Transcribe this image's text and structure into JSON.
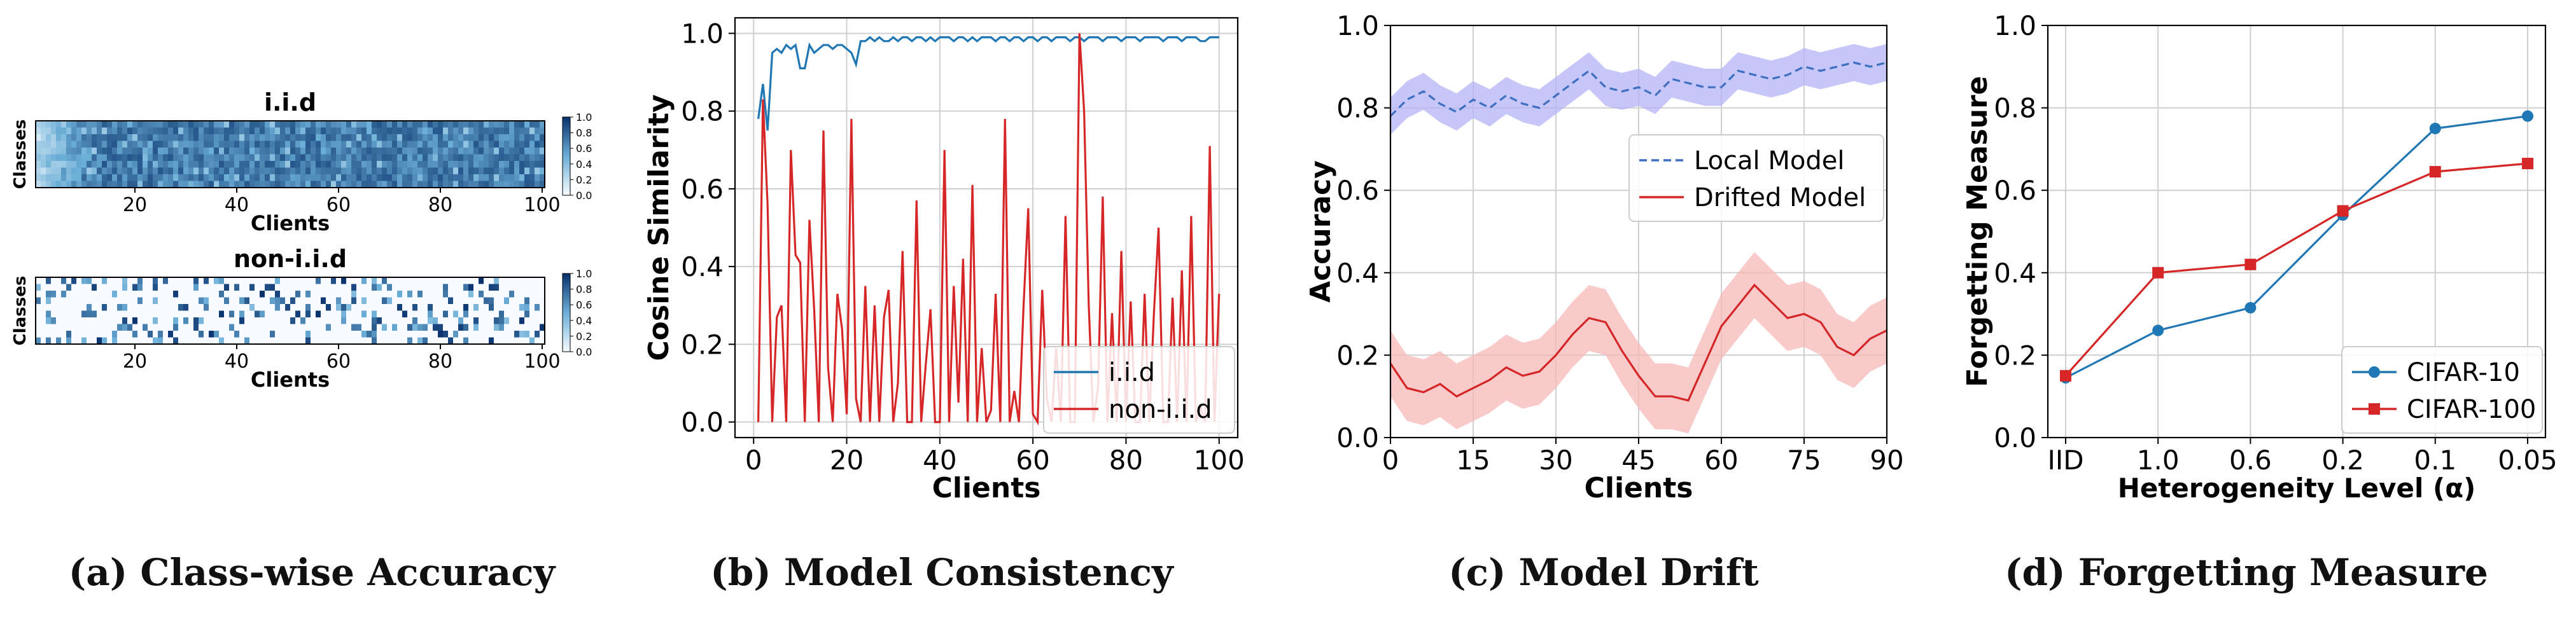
{
  "captions": {
    "a": "(a) Class-wise Accuracy",
    "b": "(b) Model Consistency",
    "c": "(c) Model Drift",
    "d": "(d) Forgetting Measure"
  },
  "colors": {
    "blue": "#1f77b4",
    "red": "#d62728",
    "dash_blue": "#3f6fc0",
    "band_blue": "#b3b3f5",
    "band_red": "#f7b8b8",
    "heat_low": "#f7fbff",
    "heat_high": "#08306b"
  },
  "chart_data": [
    {
      "type": "heatmap",
      "panel": "a-top",
      "title": "i.i.d",
      "xlabel": "Clients",
      "ylabel": "Classes",
      "xticks": [
        20,
        40,
        60,
        80,
        100
      ],
      "colorbar_ticks": [
        "1.0",
        "0.8",
        "0.6",
        "0.4",
        "0.2",
        "0.0"
      ],
      "rows": 10,
      "columns": 100,
      "value_range": [
        0,
        1
      ],
      "pattern": "dense, mostly 0.6-0.9, lighter near first clients"
    },
    {
      "type": "heatmap",
      "panel": "a-bottom",
      "title": "non-i.i.d",
      "xlabel": "Clients",
      "ylabel": "Classes",
      "xticks": [
        20,
        40,
        60,
        80,
        100
      ],
      "colorbar_ticks": [
        "1.0",
        "0.8",
        "0.6",
        "0.4",
        "0.2",
        "0.0"
      ],
      "rows": 10,
      "columns": 100,
      "value_range": [
        0,
        1
      ],
      "pattern": "sparse, most cells 0, scattered high cells"
    },
    {
      "type": "line",
      "panel": "b",
      "xlabel": "Clients",
      "ylabel": "Cosine Similarity",
      "xlim": [
        -4,
        104
      ],
      "ylim": [
        -0.04,
        1.04
      ],
      "xticks": [
        "0",
        "20",
        "40",
        "60",
        "80",
        "100"
      ],
      "yticks": [
        "0.0",
        "0.2",
        "0.4",
        "0.6",
        "0.8",
        "1.0"
      ],
      "grid": true,
      "legend": "bottom-right",
      "series": [
        {
          "name": "i.i.d",
          "color": "#1f77b4",
          "x": [
            1,
            2,
            3,
            4,
            5,
            6,
            7,
            8,
            9,
            10,
            11,
            12,
            13,
            14,
            15,
            16,
            17,
            18,
            19,
            20,
            21,
            22,
            23,
            24,
            25,
            26,
            27,
            28,
            29,
            30,
            31,
            32,
            33,
            34,
            35,
            36,
            37,
            38,
            39,
            40,
            41,
            42,
            43,
            44,
            45,
            46,
            47,
            48,
            49,
            50,
            51,
            52,
            53,
            54,
            55,
            56,
            57,
            58,
            59,
            60,
            61,
            62,
            63,
            64,
            65,
            66,
            67,
            68,
            69,
            70,
            71,
            72,
            73,
            74,
            75,
            76,
            77,
            78,
            79,
            80,
            81,
            82,
            83,
            84,
            85,
            86,
            87,
            88,
            89,
            90,
            91,
            92,
            93,
            94,
            95,
            96,
            97,
            98,
            99,
            100
          ],
          "y": [
            0.78,
            0.87,
            0.75,
            0.95,
            0.96,
            0.95,
            0.97,
            0.96,
            0.97,
            0.91,
            0.91,
            0.97,
            0.95,
            0.96,
            0.97,
            0.97,
            0.96,
            0.97,
            0.97,
            0.96,
            0.95,
            0.92,
            0.98,
            0.98,
            0.99,
            0.98,
            0.99,
            0.98,
            0.98,
            0.99,
            0.98,
            0.99,
            0.99,
            0.98,
            0.99,
            0.99,
            0.98,
            0.99,
            0.98,
            0.99,
            0.99,
            0.99,
            0.98,
            0.99,
            0.99,
            0.98,
            0.99,
            0.98,
            0.99,
            0.99,
            0.99,
            0.98,
            0.99,
            0.99,
            0.98,
            0.99,
            0.99,
            0.98,
            0.99,
            0.99,
            0.98,
            0.99,
            0.99,
            0.98,
            0.99,
            0.99,
            0.99,
            0.98,
            0.99,
            0.99,
            0.98,
            0.99,
            0.99,
            0.99,
            0.98,
            0.99,
            0.99,
            0.99,
            0.98,
            0.99,
            0.99,
            0.99,
            0.98,
            0.99,
            0.99,
            0.99,
            0.99,
            0.98,
            0.99,
            0.99,
            0.99,
            0.98,
            0.99,
            0.99,
            0.99,
            0.98,
            0.98,
            0.99,
            0.99,
            0.99
          ]
        },
        {
          "name": "non-i.i.d",
          "color": "#d62728",
          "x": [
            1,
            2,
            3,
            4,
            5,
            6,
            7,
            8,
            9,
            10,
            11,
            12,
            13,
            14,
            15,
            16,
            17,
            18,
            19,
            20,
            21,
            22,
            23,
            24,
            25,
            26,
            27,
            28,
            29,
            30,
            31,
            32,
            33,
            34,
            35,
            36,
            37,
            38,
            39,
            40,
            41,
            42,
            43,
            44,
            45,
            46,
            47,
            48,
            49,
            50,
            51,
            52,
            53,
            54,
            55,
            56,
            57,
            58,
            59,
            60,
            61,
            62,
            63,
            64,
            65,
            66,
            67,
            68,
            69,
            70,
            71,
            72,
            73,
            74,
            75,
            76,
            77,
            78,
            79,
            80,
            81,
            82,
            83,
            84,
            85,
            86,
            87,
            88,
            89,
            90,
            91,
            92,
            93,
            94,
            95,
            96,
            97,
            98,
            99,
            100
          ],
          "y": [
            0.0,
            0.83,
            0.56,
            0.0,
            0.27,
            0.3,
            0.0,
            0.7,
            0.43,
            0.41,
            0.0,
            0.52,
            0.29,
            0.0,
            0.75,
            0.14,
            0.0,
            0.33,
            0.24,
            0.02,
            0.78,
            0.06,
            0.0,
            0.35,
            0.0,
            0.3,
            0.0,
            0.27,
            0.34,
            0.0,
            0.1,
            0.44,
            0.0,
            0.0,
            0.57,
            0.0,
            0.15,
            0.29,
            0.0,
            0.0,
            0.7,
            0.0,
            0.35,
            0.05,
            0.42,
            0.0,
            0.61,
            0.0,
            0.19,
            0.0,
            0.03,
            0.33,
            0.0,
            0.78,
            0.0,
            0.08,
            0.0,
            0.3,
            0.55,
            0.02,
            0.0,
            0.34,
            0.06,
            0.0,
            0.19,
            0.0,
            0.53,
            0.0,
            0.0,
            1.0,
            0.8,
            0.3,
            0.0,
            0.09,
            0.58,
            0.0,
            0.28,
            0.0,
            0.44,
            0.0,
            0.31,
            0.0,
            0.0,
            0.33,
            0.0,
            0.28,
            0.5,
            0.0,
            0.0,
            0.32,
            0.0,
            0.39,
            0.0,
            0.53,
            0.0,
            0.04,
            0.0,
            0.71,
            0.0,
            0.33
          ]
        }
      ]
    },
    {
      "type": "line",
      "panel": "c",
      "xlabel": "Clients",
      "ylabel": "Accuracy",
      "xlim": [
        0,
        90
      ],
      "ylim": [
        0,
        1
      ],
      "xticks": [
        "0",
        "15",
        "30",
        "45",
        "60",
        "75",
        "90"
      ],
      "yticks": [
        "0.0",
        "0.2",
        "0.4",
        "0.6",
        "0.8",
        "1.0"
      ],
      "grid": true,
      "legend": "upper-right",
      "x": [
        0,
        3,
        6,
        9,
        12,
        15,
        18,
        21,
        24,
        27,
        30,
        33,
        36,
        39,
        42,
        45,
        48,
        51,
        54,
        57,
        60,
        63,
        66,
        69,
        72,
        75,
        78,
        81,
        84,
        87,
        90
      ],
      "series": [
        {
          "name": "Local Model",
          "style": "dashed",
          "color": "#3f6fc0",
          "mean": [
            0.78,
            0.82,
            0.84,
            0.81,
            0.79,
            0.82,
            0.8,
            0.83,
            0.81,
            0.8,
            0.83,
            0.86,
            0.89,
            0.85,
            0.84,
            0.85,
            0.83,
            0.87,
            0.86,
            0.85,
            0.85,
            0.89,
            0.88,
            0.87,
            0.88,
            0.9,
            0.89,
            0.9,
            0.91,
            0.9,
            0.91
          ],
          "band": 0.045
        },
        {
          "name": "Drifted Model",
          "style": "solid",
          "color": "#d62728",
          "mean": [
            0.18,
            0.12,
            0.11,
            0.13,
            0.1,
            0.12,
            0.14,
            0.17,
            0.15,
            0.16,
            0.2,
            0.25,
            0.29,
            0.28,
            0.21,
            0.15,
            0.1,
            0.1,
            0.09,
            0.18,
            0.27,
            0.32,
            0.37,
            0.33,
            0.29,
            0.3,
            0.28,
            0.22,
            0.2,
            0.24,
            0.26
          ],
          "band": 0.08
        }
      ]
    },
    {
      "type": "line",
      "panel": "d",
      "xlabel": "Heterogeneity Level (α)",
      "ylabel": "Forgetting Measure",
      "categories": [
        "IID",
        "1.0",
        "0.6",
        "0.2",
        "0.1",
        "0.05"
      ],
      "ylim": [
        0,
        1
      ],
      "yticks": [
        "0.0",
        "0.2",
        "0.4",
        "0.6",
        "0.8",
        "1.0"
      ],
      "grid": true,
      "legend": "bottom-right",
      "series": [
        {
          "name": "CIFAR-10",
          "marker": "circle",
          "color": "#1f77b4",
          "values": [
            0.145,
            0.26,
            0.315,
            0.54,
            0.75,
            0.78
          ]
        },
        {
          "name": "CIFAR-100",
          "marker": "square",
          "color": "#d62728",
          "values": [
            0.15,
            0.4,
            0.42,
            0.55,
            0.645,
            0.665
          ]
        }
      ]
    }
  ]
}
